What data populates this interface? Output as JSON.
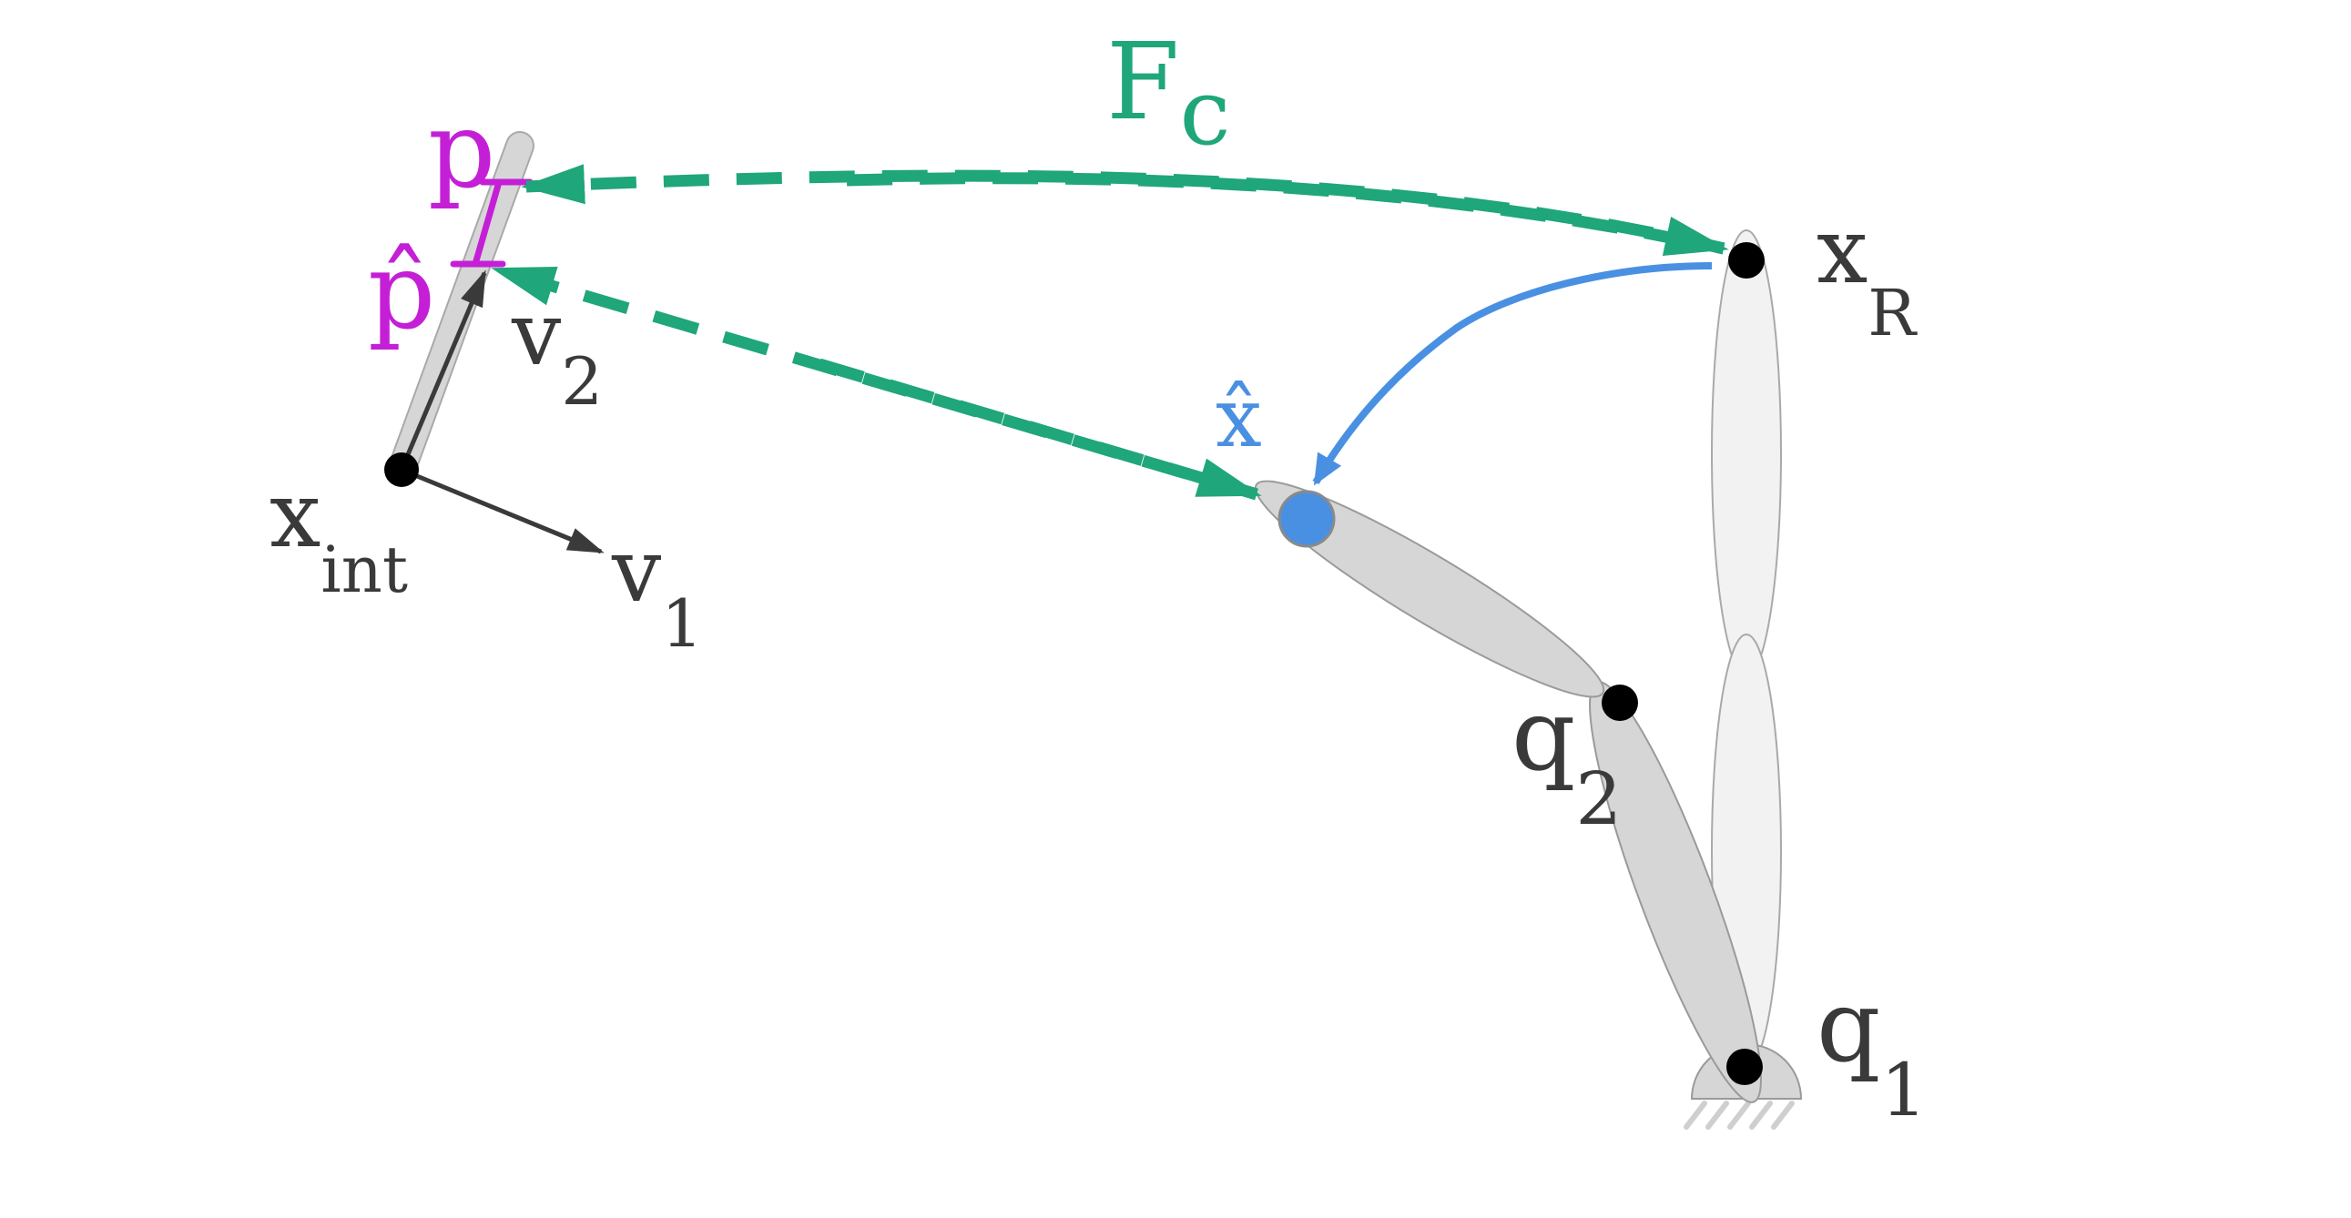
{
  "colors": {
    "force_green": "#1fa67a",
    "point_magenta": "#c41fd6",
    "estimate_blue": "#4a90e2",
    "link_gray": "#d6d6d6",
    "ghost_link": "#f2f2f2",
    "joint_black": "#000000",
    "text_dark": "#3a3a3a"
  },
  "labels": {
    "force": {
      "base": "F",
      "sub": "c"
    },
    "p": "p",
    "p_hat": "p̂",
    "v1": {
      "base": "v",
      "sub": "1"
    },
    "v2": {
      "base": "v",
      "sub": "2"
    },
    "x_int": {
      "base": "x",
      "sub": "int"
    },
    "x_hat": "x̂",
    "x_R": {
      "base": "x",
      "sub": "R"
    },
    "q1": {
      "base": "q",
      "sub": "1"
    },
    "q2": {
      "base": "q",
      "sub": "2"
    }
  },
  "icons": {
    "ground": "hatched-ground-icon",
    "joint": "black-dot-joint-icon"
  }
}
